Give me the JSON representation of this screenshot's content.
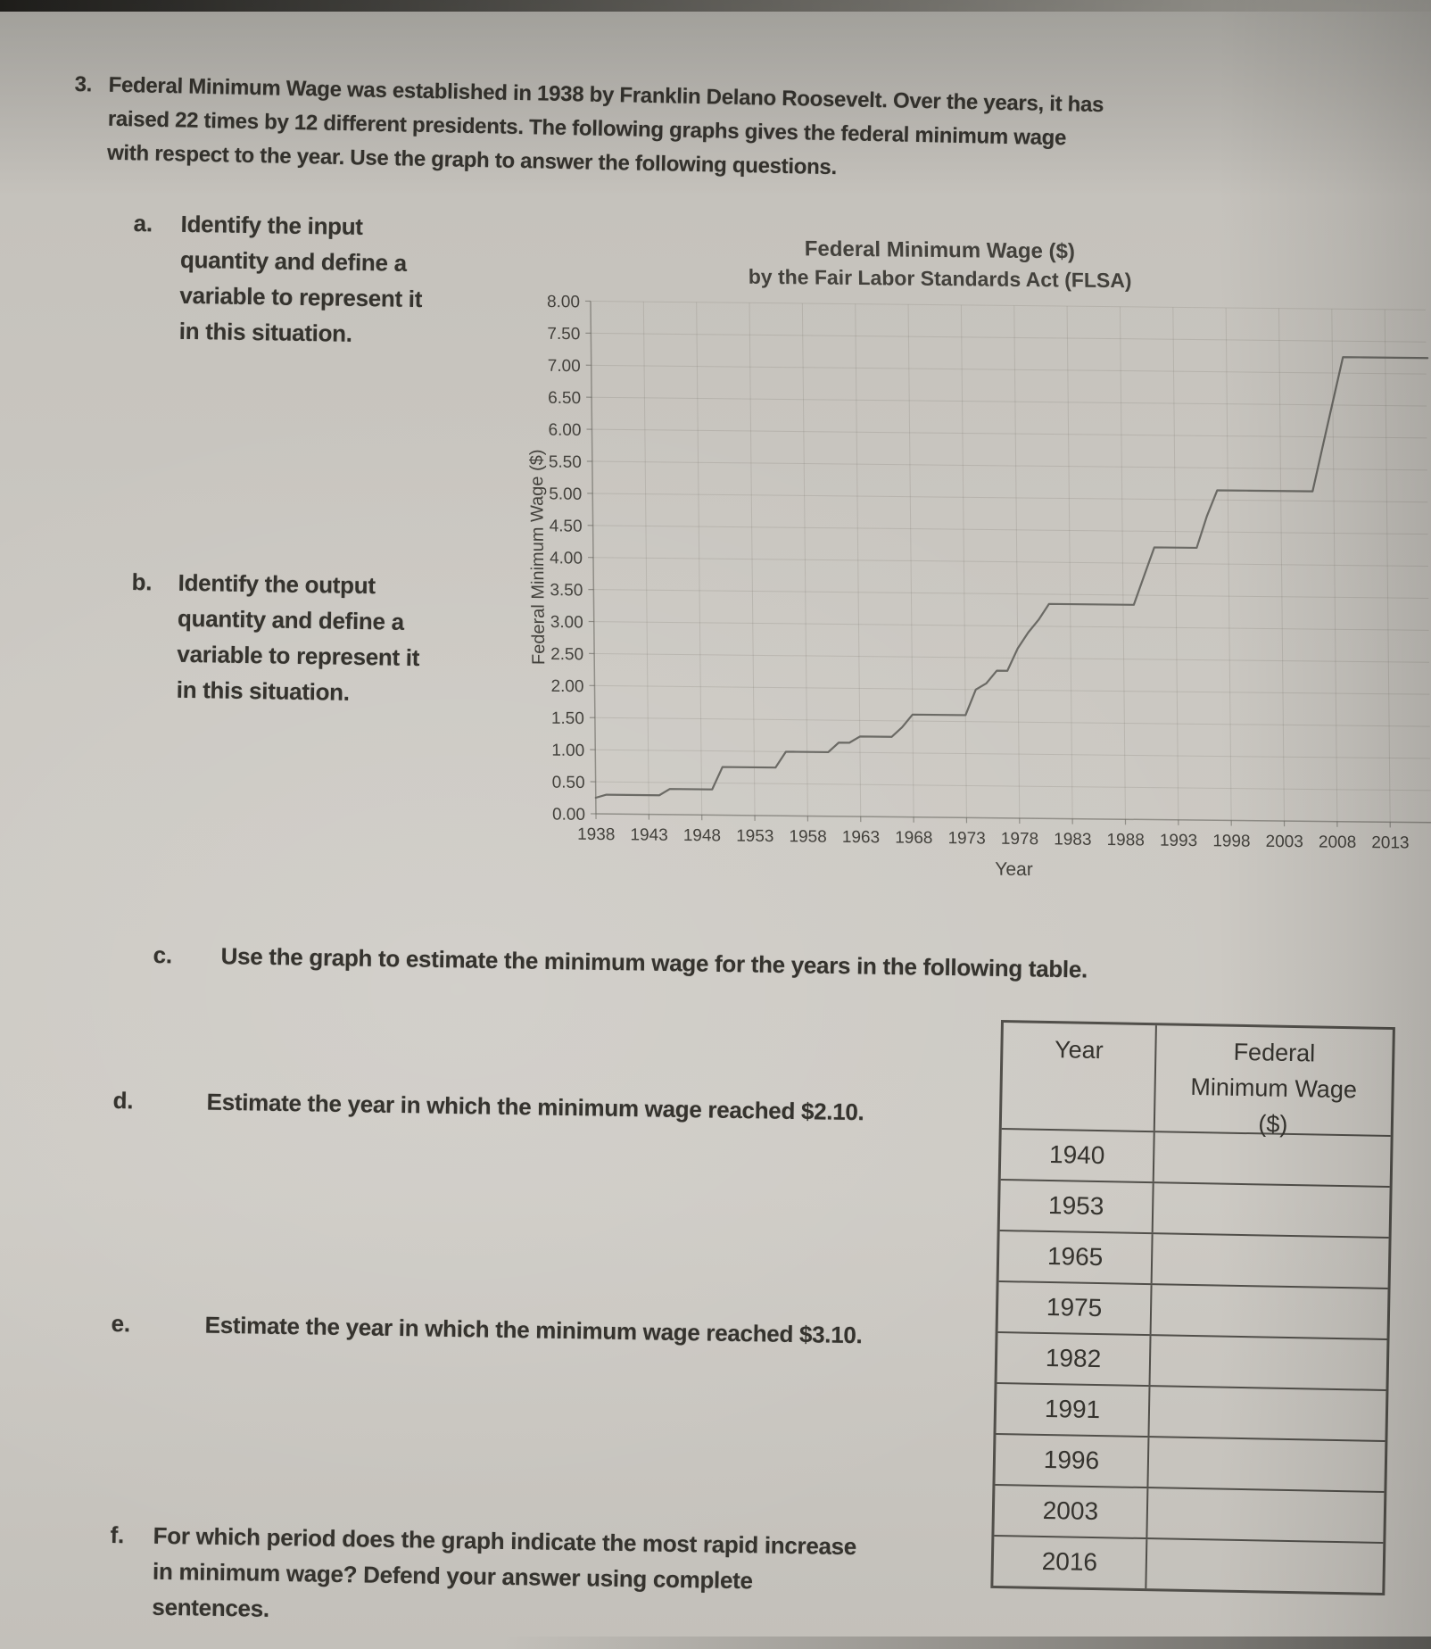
{
  "problem": {
    "number": "3.",
    "lines": [
      "Federal Minimum Wage was established in 1938 by Franklin Delano Roosevelt. Over the years, it has",
      "raised 22 times by 12 different presidents. The following graphs gives the federal minimum wage",
      "with respect to the year. Use the graph to answer the following questions."
    ]
  },
  "questions": {
    "a": {
      "label": "a.",
      "lines": [
        "Identify the input",
        "quantity and define a",
        "variable to represent it",
        "in this situation."
      ]
    },
    "b": {
      "label": "b.",
      "lines": [
        "Identify the output",
        "quantity and define a",
        "variable to represent it",
        "in this situation."
      ]
    },
    "c": {
      "label": "c.",
      "text": "Use the graph to estimate the minimum wage for the years in the following table."
    },
    "d": {
      "label": "d.",
      "text": "Estimate the year in which the minimum wage reached $2.10."
    },
    "e": {
      "label": "e.",
      "text": "Estimate the year in which the minimum wage reached $3.10."
    },
    "f": {
      "label": "f.",
      "lines": [
        "For which period does the graph indicate the most rapid increase",
        "in minimum wage? Defend your answer using complete",
        "sentences."
      ]
    }
  },
  "chart_data": {
    "type": "line",
    "title_lines": [
      "Federal Minimum Wage ($)",
      "by the Fair Labor Standards Act (FLSA)"
    ],
    "xlabel": "Year",
    "ylabel": "Federal Minimum Wage ($)",
    "x_tick_years": [
      1938,
      1943,
      1948,
      1953,
      1958,
      1963,
      1968,
      1973,
      1978,
      1983,
      1988,
      1993,
      1998,
      2003,
      2008,
      2013
    ],
    "y_tick_labels": [
      "0.00",
      "0.50",
      "1.00",
      "1.50",
      "2.00",
      "2.50",
      "3.00",
      "3.50",
      "4.00",
      "4.50",
      "5.00",
      "5.50",
      "6.00",
      "6.50",
      "7.00",
      "7.50",
      "8.00"
    ],
    "ylim": [
      0,
      8
    ],
    "xlim": [
      1938,
      2017
    ],
    "grid": true,
    "legend_position": "none",
    "line_color": "#6b6a65",
    "series": [
      {
        "name": "Federal Minimum Wage",
        "step_changes": [
          [
            1938,
            0.25
          ],
          [
            1939,
            0.3
          ],
          [
            1945,
            0.4
          ],
          [
            1950,
            0.75
          ],
          [
            1956,
            1.0
          ],
          [
            1961,
            1.15
          ],
          [
            1963,
            1.25
          ],
          [
            1967,
            1.4
          ],
          [
            1968,
            1.6
          ],
          [
            1974,
            2.0
          ],
          [
            1975,
            2.1
          ],
          [
            1976,
            2.3
          ],
          [
            1978,
            2.65
          ],
          [
            1979,
            2.9
          ],
          [
            1980,
            3.1
          ],
          [
            1981,
            3.35
          ],
          [
            1990,
            3.8
          ],
          [
            1991,
            4.25
          ],
          [
            1996,
            4.75
          ],
          [
            1997,
            5.15
          ],
          [
            2007,
            5.85
          ],
          [
            2008,
            6.55
          ],
          [
            2009,
            7.25
          ]
        ]
      }
    ]
  },
  "table": {
    "header": {
      "col1": "Year",
      "col2_lines": [
        "Federal",
        "Minimum Wage",
        "($)"
      ]
    },
    "rows": [
      {
        "year": "1940",
        "wage": ""
      },
      {
        "year": "1953",
        "wage": ""
      },
      {
        "year": "1965",
        "wage": ""
      },
      {
        "year": "1975",
        "wage": ""
      },
      {
        "year": "1982",
        "wage": ""
      },
      {
        "year": "1991",
        "wage": ""
      },
      {
        "year": "1996",
        "wage": ""
      },
      {
        "year": "2003",
        "wage": ""
      },
      {
        "year": "2016",
        "wage": ""
      }
    ]
  },
  "colors": {
    "paper": "#cbc8c2",
    "ink": "#34322d",
    "chart_line": "#6b6a65",
    "table_border": "#514f4a",
    "gridline": "#7a786f"
  }
}
